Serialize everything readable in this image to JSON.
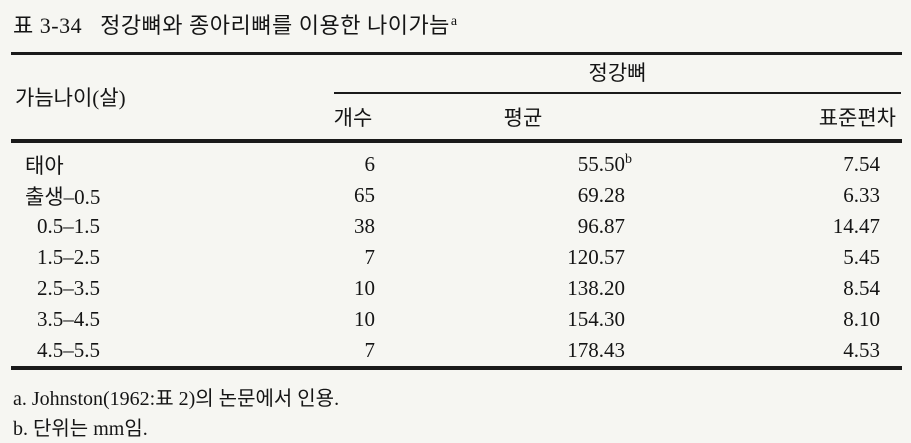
{
  "page": {
    "background": "#f6f6f2",
    "text_color": "#151515"
  },
  "title": {
    "label": "표 3-34",
    "text": "정강뼈와 종아리뼈를 이용한 나이가늠",
    "sup": "a"
  },
  "table": {
    "row_header": "가늠나이(살)",
    "spanner": "정강뼈",
    "columns": [
      "개수",
      "평균",
      "표준편차"
    ],
    "rows": [
      {
        "age": "태아",
        "count": "6",
        "mean": "55.50",
        "mean_sup": "b",
        "sd": "7.54"
      },
      {
        "age": "출생–0.5",
        "count": "65",
        "mean": "69.28",
        "mean_sup": "",
        "sd": "6.33"
      },
      {
        "age": "0.5–1.5",
        "count": "38",
        "mean": "96.87",
        "mean_sup": "",
        "sd": "14.47"
      },
      {
        "age": "1.5–2.5",
        "count": "7",
        "mean": "120.57",
        "mean_sup": "",
        "sd": "5.45"
      },
      {
        "age": "2.5–3.5",
        "count": "10",
        "mean": "138.20",
        "mean_sup": "",
        "sd": "8.54"
      },
      {
        "age": "3.5–4.5",
        "count": "10",
        "mean": "154.30",
        "mean_sup": "",
        "sd": "8.10"
      },
      {
        "age": "4.5–5.5",
        "count": "7",
        "mean": "178.43",
        "mean_sup": "",
        "sd": "4.53"
      }
    ]
  },
  "footnotes": [
    "a. Johnston(1962:표 2)의 논문에서 인용.",
    "b. 단위는 mm임."
  ]
}
